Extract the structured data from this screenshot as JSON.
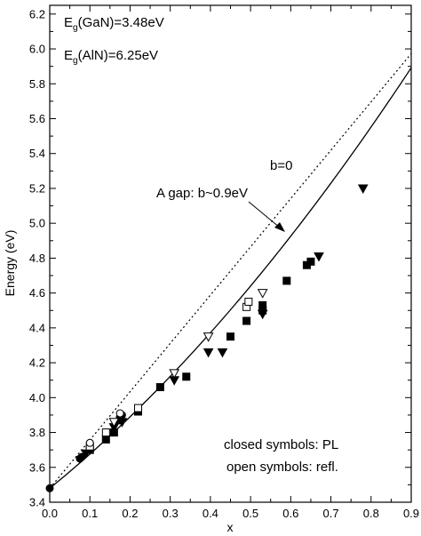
{
  "chart_data": {
    "type": "scatter",
    "xlabel": "x",
    "ylabel": "Energy (eV)",
    "xlim": [
      0.0,
      0.9
    ],
    "ylim": [
      3.4,
      6.25
    ],
    "x_ticks": [
      "0.0",
      "0.1",
      "0.2",
      "0.3",
      "0.4",
      "0.5",
      "0.6",
      "0.7",
      "0.8",
      "0.9"
    ],
    "y_ticks": [
      "3.4",
      "3.6",
      "3.8",
      "4.0",
      "4.2",
      "4.4",
      "4.6",
      "4.8",
      "5.0",
      "5.2",
      "5.4",
      "5.6",
      "5.8",
      "6.0",
      "6.2"
    ],
    "grid": false,
    "annotations": {
      "eg_gan_base": "E",
      "eg_gan_sub": "g",
      "eg_gan_rest": "(GaN)=3.48eV",
      "eg_aln_base": "E",
      "eg_aln_sub": "g",
      "eg_aln_rest": "(AlN)=6.25eV",
      "b0_label": "b=0",
      "agap_label": "A gap: b~0.9eV",
      "closed_label": "closed symbols: PL",
      "open_label": "open symbols: refl."
    },
    "curves": [
      {
        "label_ref": "b0_label",
        "style": "dotted",
        "eg_gan": 3.48,
        "eg_aln": 6.25,
        "bowing": 0.0
      },
      {
        "label_ref": "agap_label",
        "style": "solid",
        "eg_gan": 3.48,
        "eg_aln": 6.25,
        "bowing": 0.9
      }
    ],
    "series": [
      {
        "marker": "filled-square",
        "points": [
          [
            0.1,
            3.7
          ],
          [
            0.14,
            3.76
          ],
          [
            0.16,
            3.8
          ],
          [
            0.175,
            3.87
          ],
          [
            0.22,
            3.92
          ],
          [
            0.275,
            4.06
          ],
          [
            0.34,
            4.12
          ],
          [
            0.45,
            4.35
          ],
          [
            0.49,
            4.44
          ],
          [
            0.53,
            4.5
          ],
          [
            0.53,
            4.53
          ],
          [
            0.59,
            4.67
          ],
          [
            0.64,
            4.76
          ],
          [
            0.65,
            4.78
          ]
        ]
      },
      {
        "marker": "filled-circle",
        "points": [
          [
            0.0,
            3.48
          ],
          [
            0.075,
            3.65
          ],
          [
            0.08,
            3.66
          ],
          [
            0.1,
            3.72
          ],
          [
            0.1,
            3.74
          ],
          [
            0.175,
            3.89
          ],
          [
            0.18,
            3.9
          ]
        ]
      },
      {
        "marker": "filled-triangle-down",
        "points": [
          [
            0.09,
            3.68
          ],
          [
            0.16,
            3.83
          ],
          [
            0.18,
            3.86
          ],
          [
            0.31,
            4.1
          ],
          [
            0.395,
            4.26
          ],
          [
            0.43,
            4.26
          ],
          [
            0.53,
            4.48
          ],
          [
            0.67,
            4.81
          ],
          [
            0.78,
            5.2
          ]
        ]
      },
      {
        "marker": "open-square",
        "points": [
          [
            0.1,
            3.72
          ],
          [
            0.14,
            3.8
          ],
          [
            0.22,
            3.94
          ],
          [
            0.49,
            4.52
          ],
          [
            0.495,
            4.55
          ]
        ]
      },
      {
        "marker": "open-circle",
        "points": [
          [
            0.175,
            3.91
          ],
          [
            0.1,
            3.74
          ]
        ]
      },
      {
        "marker": "open-triangle-down",
        "points": [
          [
            0.16,
            3.86
          ],
          [
            0.31,
            4.14
          ],
          [
            0.395,
            4.35
          ],
          [
            0.53,
            4.6
          ]
        ]
      }
    ]
  }
}
